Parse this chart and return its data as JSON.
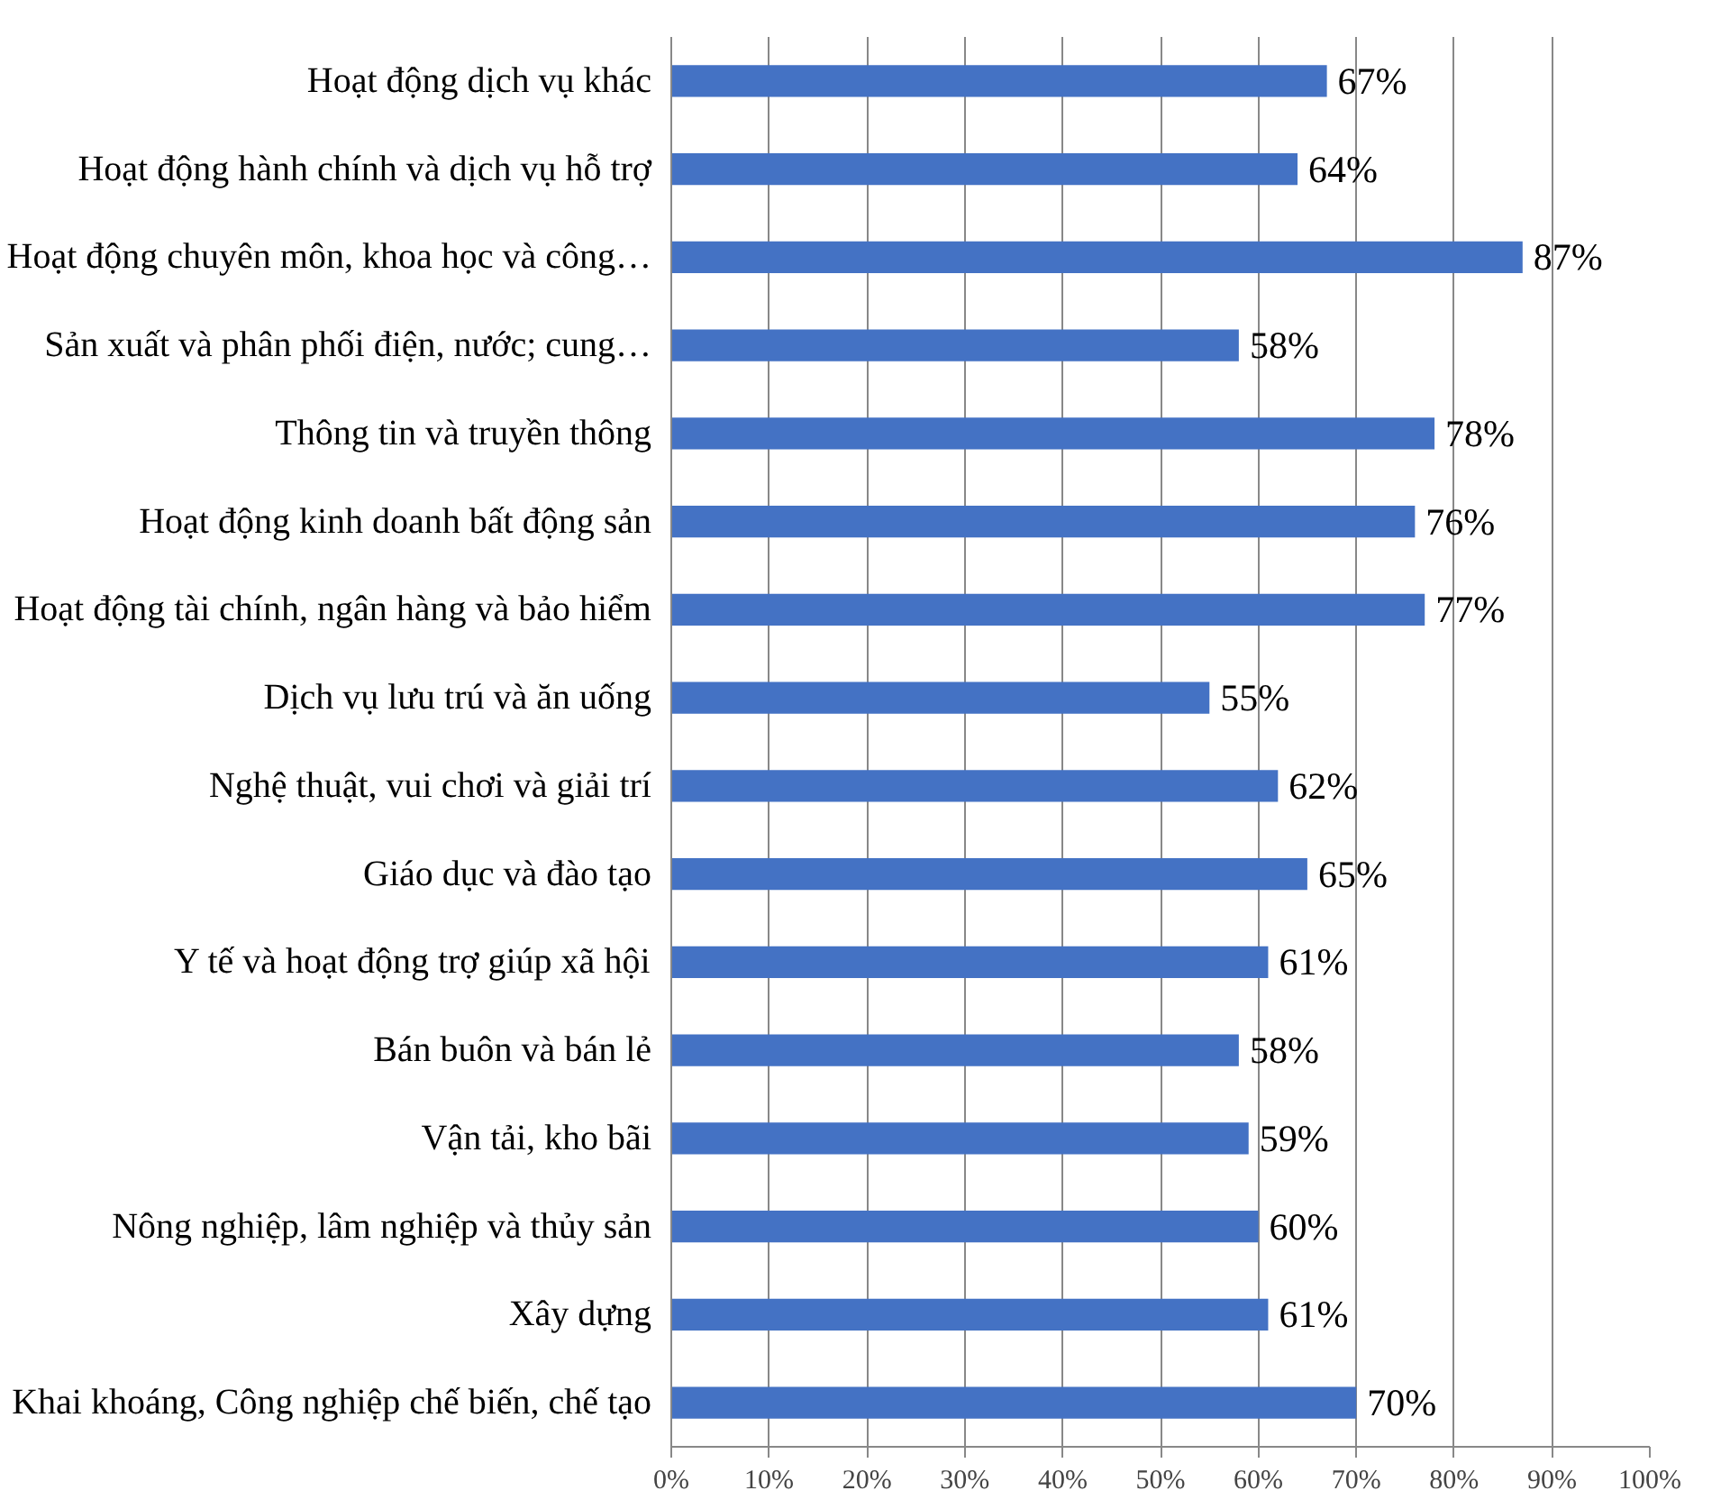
{
  "chart_data": {
    "type": "bar",
    "orientation": "horizontal",
    "categories": [
      "Hoạt động dịch vụ khác",
      "Hoạt động hành chính và dịch vụ hỗ trợ",
      "Hoạt động chuyên môn, khoa học và công…",
      "Sản xuất và phân phối điện, nước; cung…",
      "Thông tin và truyền thông",
      "Hoạt động kinh doanh bất động sản",
      "Hoạt động tài chính, ngân hàng và bảo hiểm",
      "Dịch vụ lưu trú và ăn uống",
      "Nghệ thuật, vui chơi và giải trí",
      "Giáo dục và đào tạo",
      "Y tế và hoạt động trợ giúp xã hội",
      "Bán buôn và bán lẻ",
      "Vận tải, kho bãi",
      "Nông nghiệp, lâm nghiệp và thủy sản",
      "Xây dựng",
      "Khai khoáng, Công nghiệp chế biến, chế tạo"
    ],
    "values": [
      67,
      64,
      87,
      58,
      78,
      76,
      77,
      55,
      62,
      65,
      61,
      58,
      59,
      60,
      61,
      70
    ],
    "value_labels": [
      "67%",
      "64%",
      "87%",
      "58%",
      "78%",
      "76%",
      "77%",
      "55%",
      "62%",
      "65%",
      "61%",
      "58%",
      "59%",
      "60%",
      "61%",
      "70%"
    ],
    "color": "#4472c4",
    "xlim": [
      0,
      100
    ],
    "xticks": [
      {
        "value": 0,
        "label": "0%"
      },
      {
        "value": 10,
        "label": "10%"
      },
      {
        "value": 20,
        "label": "20%"
      },
      {
        "value": 30,
        "label": "30%"
      },
      {
        "value": 40,
        "label": "40%"
      },
      {
        "value": 50,
        "label": "50%"
      },
      {
        "value": 60,
        "label": "60%"
      },
      {
        "value": 70,
        "label": "70%"
      },
      {
        "value": 80,
        "label": "80%"
      },
      {
        "value": 90,
        "label": "90%"
      },
      {
        "value": 100,
        "label": "100%"
      }
    ],
    "grid": "x"
  }
}
